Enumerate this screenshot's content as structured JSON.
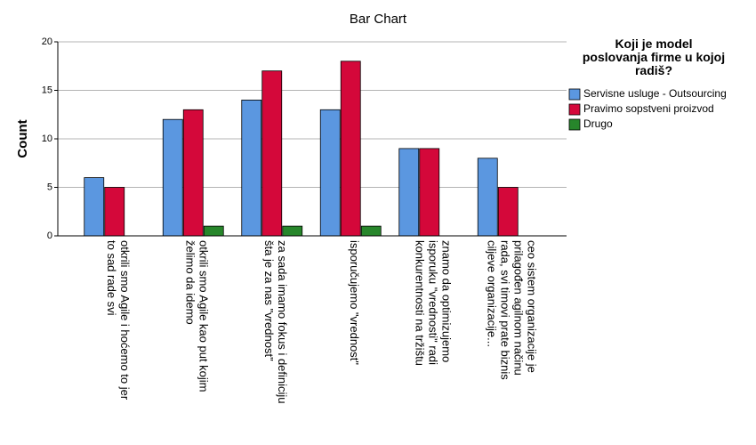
{
  "chart_data": {
    "type": "bar",
    "title": "Bar Chart",
    "y_label": "Count",
    "legend_title": "Koji je model\nposlovanja firme u kojoj\nradiš?",
    "legend_position": "right",
    "grid": true,
    "categories": [
      "otkrili smo Agile i hoćemo to jer\nto sad rade svi",
      "otkrili smo Agile kao put kojim\nželimo da idemo",
      "za sada imamo fokus i definiciju\nšta je za nas \"vrednost\"",
      "isporučujemo \"vrednost\"",
      "znamo da optimizujemo\nisporuku \"vrednosti\" radi\nkonkurentnosti na tržištu",
      "ceo sistem organizacije je\nprilagođen agilnom načinu\nrada, svi timovi prate biznis\nciljeve organizacije..."
    ],
    "series": [
      {
        "name": "Servisne usluge - Outsourcing",
        "color": "#5b97e0",
        "values": [
          6,
          12,
          14,
          13,
          9,
          8
        ]
      },
      {
        "name": "Pravimo sopstveni proizvod",
        "color": "#d4083a",
        "values": [
          5,
          13,
          17,
          18,
          9,
          5
        ]
      },
      {
        "name": "Drugo",
        "color": "#27862b",
        "values": [
          0,
          1,
          1,
          1,
          0,
          0
        ]
      }
    ],
    "ylim": [
      0,
      20
    ],
    "yticks": [
      0,
      5,
      10,
      15,
      20
    ]
  }
}
